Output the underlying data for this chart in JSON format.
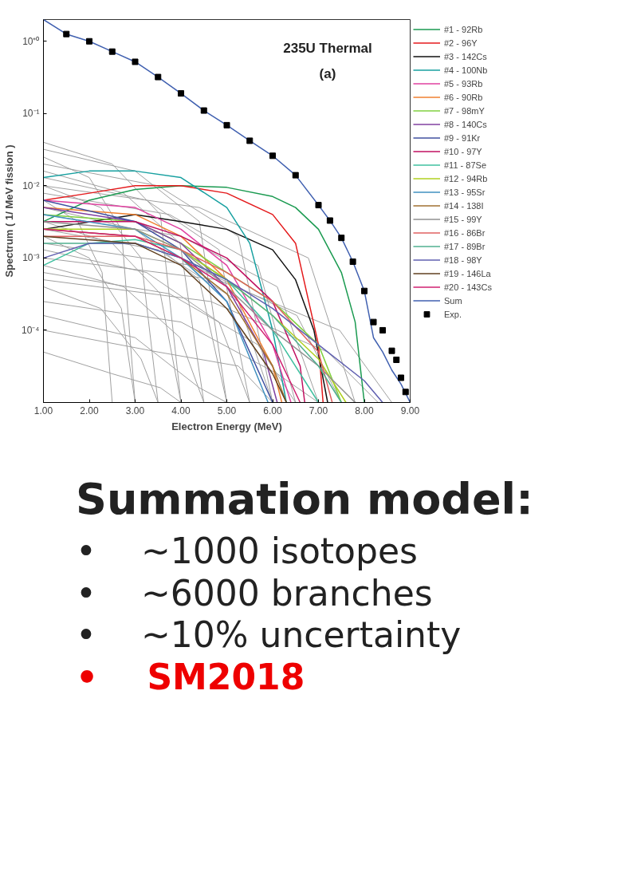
{
  "chart_data": {
    "type": "line",
    "title": "235U Thermal",
    "subtitle": "(a)",
    "xlabel": "Electron Energy (MeV)",
    "ylabel": "Spectrum ( 1/ MeV fission )",
    "log": "y",
    "grid": false,
    "legend": "right",
    "xlim": [
      1,
      9
    ],
    "ylim": [
      1e-05,
      2
    ],
    "xticks": [
      {
        "value": 1,
        "label": "1.00"
      },
      {
        "value": 2,
        "label": "2.00"
      },
      {
        "value": 3,
        "label": "3.00"
      },
      {
        "value": 4,
        "label": "4.00"
      },
      {
        "value": 5,
        "label": "5.00"
      },
      {
        "value": 6,
        "label": "6.00"
      },
      {
        "value": 7,
        "label": "7.00"
      },
      {
        "value": 8,
        "label": "8.00"
      },
      {
        "value": 9,
        "label": "9.00"
      }
    ],
    "yticks": [
      {
        "value": 1,
        "label": "10⁺⁰"
      },
      {
        "value": 0.1,
        "label": "10⁻¹"
      },
      {
        "value": 0.01,
        "label": "10⁻²"
      },
      {
        "value": 0.001,
        "label": "10⁻³"
      },
      {
        "value": 0.0001,
        "label": "10⁻⁴"
      }
    ],
    "annotations": [
      "Summation model:",
      "•    ~1000 isotopes",
      "•    ~6000 branches",
      "•    ~10% uncertainty",
      "•    SM2018"
    ],
    "series": [
      {
        "color": "#a0a0a0",
        "x": [
          1,
          2.5,
          3.55,
          4
        ],
        "values": [
          0.04,
          0.02,
          0.004,
          1e-05
        ]
      },
      {
        "color": "#a0a0a0",
        "x": [
          1,
          3,
          4.4,
          5
        ],
        "values": [
          0.032,
          0.016,
          0.0032,
          1e-05
        ]
      },
      {
        "color": "#a0a0a0",
        "x": [
          1,
          2,
          2.7,
          3
        ],
        "values": [
          0.025,
          0.013,
          0.0025,
          1e-05
        ]
      },
      {
        "color": "#a0a0a0",
        "x": [
          1,
          3.5,
          5.25,
          6
        ],
        "values": [
          0.02,
          0.01,
          0.002,
          1e-05
        ]
      },
      {
        "color": "#a0a0a0",
        "x": [
          1,
          2.75,
          3.98,
          4.5
        ],
        "values": [
          0.016,
          0.0079,
          0.0016,
          1e-05
        ]
      },
      {
        "color": "#a0a0a0",
        "x": [
          1,
          3.25,
          4.83,
          5.5
        ],
        "values": [
          0.013,
          0.0063,
          0.0013,
          1e-05
        ]
      },
      {
        "color": "#a0a0a0",
        "x": [
          1,
          2.25,
          3.13,
          3.5
        ],
        "values": [
          0.01,
          0.005,
          0.001,
          1e-05
        ]
      },
      {
        "color": "#a0a0a0",
        "x": [
          1,
          3.75,
          5.68,
          6.5
        ],
        "values": [
          0.0079,
          0.004,
          0.00079,
          1e-05
        ]
      },
      {
        "color": "#a0a0a0",
        "x": [
          1,
          1.75,
          2.28,
          2.5
        ],
        "values": [
          0.0063,
          0.0032,
          0.00063,
          1e-05
        ]
      },
      {
        "color": "#a0a0a0",
        "x": [
          1,
          3,
          4.4,
          5
        ],
        "values": [
          0.005,
          0.0025,
          0.0005,
          1e-05
        ]
      },
      {
        "color": "#a0a0a0",
        "x": [
          1,
          4,
          6.1,
          7
        ],
        "values": [
          0.004,
          0.002,
          0.0004,
          1e-05
        ]
      },
      {
        "color": "#a0a0a0",
        "x": [
          1,
          2.5,
          3.55,
          4
        ],
        "values": [
          0.0032,
          0.0016,
          0.00032,
          1e-05
        ]
      },
      {
        "color": "#a0a0a0",
        "x": [
          1,
          3.5,
          5.25,
          6
        ],
        "values": [
          0.0025,
          0.0013,
          0.00025,
          1e-05
        ]
      },
      {
        "color": "#a0a0a0",
        "x": [
          1,
          2,
          2.7,
          3
        ],
        "values": [
          0.002,
          0.001,
          0.0002,
          1e-05
        ]
      },
      {
        "color": "#a0a0a0",
        "x": [
          1,
          4.25,
          6.53,
          7.5
        ],
        "values": [
          0.0016,
          0.00079,
          0.00016,
          1e-05
        ]
      },
      {
        "color": "#a0a0a0",
        "x": [
          1,
          3.25,
          4.83,
          5.5
        ],
        "values": [
          0.0013,
          0.00063,
          0.00013,
          1e-05
        ]
      },
      {
        "color": "#a0a0a0",
        "x": [
          1,
          4.8,
          7.46,
          8.6
        ],
        "values": [
          0.001,
          0.0005,
          0.0001,
          1e-05
        ]
      },
      {
        "color": "#a0a0a0",
        "x": [
          1,
          2.75,
          3.98,
          4.5
        ],
        "values": [
          0.00079,
          0.0004,
          7.9e-05,
          1e-05
        ]
      },
      {
        "color": "#a0a0a0",
        "x": [
          1,
          3.75,
          5.68,
          6.5
        ],
        "values": [
          0.00063,
          0.00032,
          6.3e-05,
          1e-05
        ]
      },
      {
        "color": "#a0a0a0",
        "x": [
          1,
          2.25,
          3.13,
          3.5
        ],
        "values": [
          0.0004,
          0.0002,
          4e-05,
          1e-05
        ]
      },
      {
        "color": "#a0a0a0",
        "x": [
          1,
          4,
          6.1,
          7
        ],
        "values": [
          0.00025,
          0.00013,
          2.5e-05,
          1e-05
        ]
      },
      {
        "color": "#a0a0a0",
        "x": [
          1,
          3,
          4.4,
          5
        ],
        "values": [
          0.00016,
          7.9e-05,
          1.6e-05,
          1e-05
        ]
      },
      {
        "color": "#a0a0a0",
        "x": [
          1,
          3.5,
          5.25,
          6
        ],
        "values": [
          0.0001,
          5e-05,
          3.2e-05,
          1e-05
        ]
      },
      {
        "color": "#a0a0a0",
        "x": [
          1,
          2.5,
          3.55,
          4
        ],
        "values": [
          5e-05,
          2.5e-05,
          1.6e-05,
          1e-05
        ]
      },
      {
        "color": "#a0a0a0",
        "x": [
          1,
          4.4,
          6.78,
          7.8
        ],
        "values": [
          0.01,
          0.005,
          0.001,
          1e-05
        ]
      },
      {
        "color": "#a0a0a0",
        "x": [
          1,
          4.65,
          7.2,
          8.3
        ],
        "values": [
          0.0005,
          0.00025,
          5e-05,
          1e-05
        ]
      },
      {
        "name": "#1 - 92Rb",
        "color": "#1a9a50",
        "x": [
          1,
          2,
          3,
          4,
          5,
          6,
          6.5,
          7,
          7.5,
          7.8,
          8
        ],
        "values": [
          0.0032,
          0.0063,
          0.0089,
          0.01,
          0.0095,
          0.0071,
          0.005,
          0.0025,
          0.00063,
          0.00013,
          1e-05
        ]
      },
      {
        "name": "#2 - 96Y",
        "color": "#e41a1c",
        "x": [
          1,
          2,
          3,
          4,
          5,
          6,
          6.5,
          7,
          7.1
        ],
        "values": [
          0.0063,
          0.0079,
          0.01,
          0.01,
          0.0079,
          0.004,
          0.0016,
          6.3e-05,
          1e-05
        ]
      },
      {
        "name": "#3 - 142Cs",
        "color": "#111111",
        "x": [
          1,
          3,
          4,
          5,
          6,
          6.5,
          6.9,
          7.2
        ],
        "values": [
          0.0025,
          0.004,
          0.0032,
          0.0025,
          0.0013,
          0.0005,
          0.0001,
          1e-05
        ]
      },
      {
        "name": "#4 - 100Nb",
        "color": "#17a0a0",
        "x": [
          1,
          2,
          3,
          4,
          5,
          5.5,
          6,
          6.3
        ],
        "values": [
          0.013,
          0.016,
          0.016,
          0.013,
          0.005,
          0.0016,
          0.0001,
          1e-05
        ]
      },
      {
        "name": "#5 - 93Rb",
        "color": "#e040a0",
        "x": [
          1,
          3,
          4,
          5,
          6,
          6.4
        ],
        "values": [
          0.0063,
          0.005,
          0.0025,
          0.00079,
          6.3e-05,
          1e-05
        ]
      },
      {
        "name": "#6 - 90Rb",
        "color": "#f08030",
        "x": [
          1,
          3,
          4,
          5,
          6,
          6.2
        ],
        "values": [
          0.005,
          0.004,
          0.002,
          0.0005,
          3.2e-05,
          1e-05
        ]
      },
      {
        "name": "#7 - 98mY",
        "color": "#80d040",
        "x": [
          1,
          3,
          4,
          5,
          6,
          7,
          7.5
        ],
        "values": [
          0.004,
          0.0032,
          0.0016,
          0.00063,
          0.00025,
          6.3e-05,
          1e-05
        ]
      },
      {
        "name": "#8 - 140Cs",
        "color": "#8040a0",
        "x": [
          1,
          3,
          4,
          5,
          5.8,
          6.1
        ],
        "values": [
          0.005,
          0.0032,
          0.0016,
          0.0004,
          5e-05,
          1e-05
        ]
      },
      {
        "name": "#9 - 91Kr",
        "color": "#4050a0",
        "x": [
          1,
          3,
          4,
          5,
          6
        ],
        "values": [
          0.0063,
          0.0032,
          0.0013,
          0.00025,
          1e-05
        ]
      },
      {
        "name": "#10 - 97Y",
        "color": "#c01060",
        "x": [
          1,
          3,
          4,
          5,
          6,
          6.6,
          6.7
        ],
        "values": [
          0.0032,
          0.0032,
          0.002,
          0.001,
          0.00025,
          3.2e-05,
          1e-05
        ]
      },
      {
        "name": "#11 - 87Se",
        "color": "#40c0a0",
        "x": [
          1,
          2,
          3,
          4,
          5,
          6,
          7
        ],
        "values": [
          0.00079,
          0.0016,
          0.0018,
          0.0013,
          0.0005,
          0.0001,
          1e-05
        ]
      },
      {
        "name": "#12 - 94Rb",
        "color": "#b0d020",
        "x": [
          1,
          3,
          4,
          5,
          6,
          7,
          7.6
        ],
        "values": [
          0.0025,
          0.0025,
          0.0013,
          0.0005,
          0.00016,
          4e-05,
          1e-05
        ]
      },
      {
        "name": "#13 - 95Sr",
        "color": "#4090c0",
        "x": [
          1,
          3,
          4,
          5,
          5.9
        ],
        "values": [
          0.004,
          0.0025,
          0.001,
          0.00025,
          1e-05
        ]
      },
      {
        "name": "#14 - 138I",
        "color": "#a07030",
        "x": [
          1,
          3,
          4,
          5,
          6,
          6.3
        ],
        "values": [
          0.0025,
          0.002,
          0.001,
          0.00032,
          3.2e-05,
          1e-05
        ]
      },
      {
        "name": "#15 - 99Y",
        "color": "#909090",
        "x": [
          1,
          3,
          4,
          5,
          6,
          7,
          7.8
        ],
        "values": [
          0.0032,
          0.0025,
          0.0013,
          0.0004,
          0.0001,
          3.2e-05,
          1e-05
        ]
      },
      {
        "name": "#16 - 86Br",
        "color": "#e06060",
        "x": [
          1,
          3,
          4,
          5,
          6,
          7,
          7.3
        ],
        "values": [
          0.002,
          0.002,
          0.0013,
          0.00063,
          0.00025,
          5e-05,
          1e-05
        ]
      },
      {
        "name": "#17 - 89Br",
        "color": "#50b090",
        "x": [
          1,
          3,
          4,
          5,
          6,
          7,
          7.5
        ],
        "values": [
          0.0016,
          0.0016,
          0.001,
          0.0005,
          0.00016,
          3.2e-05,
          1e-05
        ]
      },
      {
        "name": "#18 - 98Y",
        "color": "#6060b0",
        "x": [
          1,
          2,
          3,
          4,
          5,
          6,
          7,
          8,
          8.4
        ],
        "values": [
          0.001,
          0.0016,
          0.0016,
          0.001,
          0.0005,
          0.0002,
          6.3e-05,
          2e-05,
          1e-05
        ]
      },
      {
        "name": "#19 - 146La",
        "color": "#604020",
        "x": [
          1,
          3,
          4,
          5,
          6,
          6.3
        ],
        "values": [
          0.002,
          0.0016,
          0.00079,
          0.0002,
          2.5e-05,
          1e-05
        ]
      },
      {
        "name": "#20 - 143Cs",
        "color": "#d02070",
        "x": [
          1,
          3,
          4,
          5,
          6,
          6.6
        ],
        "values": [
          0.0025,
          0.002,
          0.001,
          0.0004,
          6.3e-05,
          1e-05
        ]
      },
      {
        "name": "Sum",
        "color": "#4060b0",
        "x": [
          1,
          1.5,
          2,
          2.5,
          3,
          3.5,
          4,
          4.5,
          5,
          5.5,
          6,
          6.5,
          7,
          7.25,
          7.5,
          7.75,
          8,
          8.2,
          8.4,
          8.6,
          8.8,
          9
        ],
        "values": [
          2,
          1.26,
          1.0,
          0.72,
          0.52,
          0.32,
          0.19,
          0.11,
          0.069,
          0.042,
          0.026,
          0.014,
          0.0054,
          0.0033,
          0.0019,
          0.00089,
          0.00035,
          7.9e-05,
          5e-05,
          2.8e-05,
          1.8e-05,
          1e-05
        ]
      },
      {
        "name": "Exp.",
        "type": "scatter",
        "marker": "square",
        "color": "#000000",
        "x": [
          1.5,
          2,
          2.5,
          3,
          3.5,
          4,
          4.5,
          5,
          5.5,
          6,
          6.5,
          7,
          7.25,
          7.5,
          7.75,
          8,
          8.2,
          8.4,
          8.6,
          8.7,
          8.8,
          8.9
        ],
        "values": [
          1.26,
          1.0,
          0.72,
          0.52,
          0.32,
          0.19,
          0.11,
          0.069,
          0.042,
          0.026,
          0.014,
          0.0054,
          0.0033,
          0.0019,
          0.00089,
          0.00035,
          0.00013,
          0.0001,
          5.2e-05,
          3.9e-05,
          2.2e-05,
          1.4e-05
        ]
      }
    ]
  }
}
